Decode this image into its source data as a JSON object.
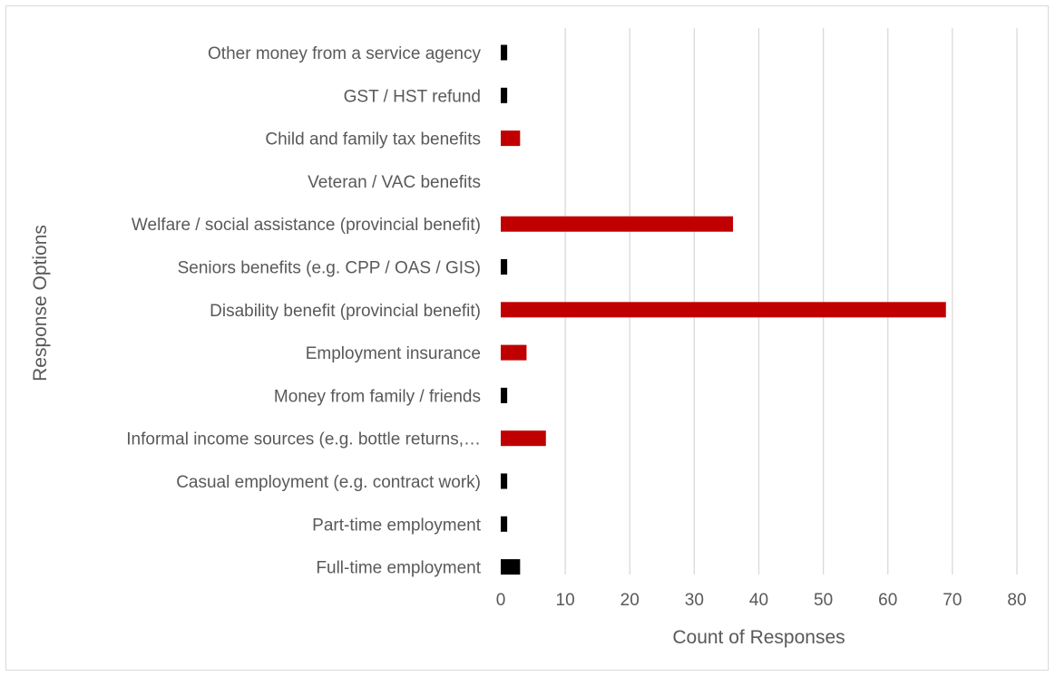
{
  "chart_data": {
    "type": "bar",
    "orientation": "horizontal",
    "xlabel": "Count of Responses",
    "ylabel": "Response Options",
    "xlim": [
      0,
      80
    ],
    "xticks": [
      0,
      10,
      20,
      30,
      40,
      50,
      60,
      70,
      80
    ],
    "grid": true,
    "legend": "none",
    "categories": [
      "Other money from a service agency",
      "GST / HST refund",
      "Child and family tax benefits",
      "Veteran / VAC benefits",
      "Welfare / social assistance (provincial benefit)",
      "Seniors benefits (e.g. CPP / OAS / GIS)",
      "Disability benefit (provincial benefit)",
      "Employment insurance",
      "Money from family / friends",
      "Informal income sources (e.g. bottle returns,…",
      "Casual employment (e.g. contract work)",
      "Part-time employment",
      "Full-time employment"
    ],
    "values": [
      1,
      1,
      3,
      0,
      36,
      1,
      69,
      4,
      1,
      7,
      1,
      1,
      3
    ],
    "bar_colors": [
      "#000000",
      "#000000",
      "#c00000",
      "#000000",
      "#c00000",
      "#000000",
      "#c00000",
      "#c00000",
      "#000000",
      "#c00000",
      "#000000",
      "#000000",
      "#000000"
    ]
  }
}
